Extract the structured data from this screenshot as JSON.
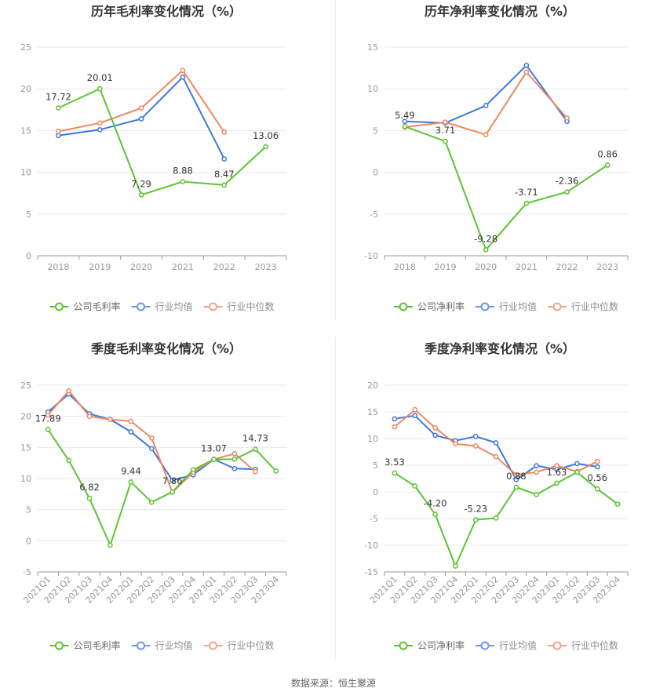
{
  "source": "数据来源：恒生聚源",
  "colors": {
    "company": "#5cc433",
    "avg": "#3d78dd",
    "median": "#f08760"
  },
  "chart_data": [
    {
      "type": "line",
      "title": "历年毛利率变化情况（%）",
      "categories": [
        "2018",
        "2019",
        "2020",
        "2021",
        "2022",
        "2023"
      ],
      "ylim": [
        0,
        25
      ],
      "yticks": [
        0,
        5,
        10,
        15,
        20,
        25
      ],
      "grid": true,
      "legend": "bottom",
      "series": [
        {
          "name": "公司毛利率",
          "values": [
            17.72,
            20.01,
            7.29,
            8.88,
            8.47,
            13.06
          ],
          "labels": [
            "17.72",
            "20.01",
            "7.29",
            "8.88",
            "8.47",
            "13.06"
          ]
        },
        {
          "name": "行业均值",
          "values": [
            14.4,
            15.1,
            16.4,
            21.4,
            11.6,
            null
          ]
        },
        {
          "name": "行业中位数",
          "values": [
            14.9,
            15.9,
            17.7,
            22.2,
            14.8,
            null
          ]
        }
      ]
    },
    {
      "type": "line",
      "title": "历年净利率变化情况（%）",
      "categories": [
        "2018",
        "2019",
        "2020",
        "2021",
        "2022",
        "2023"
      ],
      "ylim": [
        -10,
        15
      ],
      "yticks": [
        -10,
        -5,
        0,
        5,
        10,
        15
      ],
      "grid": true,
      "legend": "bottom",
      "series": [
        {
          "name": "公司净利率",
          "values": [
            5.49,
            3.71,
            -9.28,
            -3.71,
            -2.36,
            0.86
          ],
          "labels": [
            "5.49",
            "3.71",
            "-9.28",
            "-3.71",
            "-2.36",
            "0.86"
          ]
        },
        {
          "name": "行业均值",
          "values": [
            6.1,
            5.9,
            8.0,
            12.8,
            6.1,
            null
          ]
        },
        {
          "name": "行业中位数",
          "values": [
            5.4,
            6.0,
            4.5,
            12.0,
            6.5,
            null
          ]
        }
      ]
    },
    {
      "type": "line",
      "title": "季度毛利率变化情况（%）",
      "categories": [
        "2021Q1",
        "2021Q2",
        "2021Q3",
        "2021Q4",
        "2022Q1",
        "2022Q2",
        "2022Q3",
        "2022Q4",
        "2023Q1",
        "2023Q2",
        "2023Q3",
        "2023Q4"
      ],
      "ylim": [
        -5,
        25
      ],
      "yticks": [
        -5,
        0,
        5,
        10,
        15,
        20,
        25
      ],
      "grid": true,
      "legend": "bottom",
      "series": [
        {
          "name": "公司毛利率",
          "values": [
            17.89,
            12.9,
            6.82,
            -0.7,
            9.44,
            6.2,
            7.86,
            11.4,
            13.07,
            13.1,
            14.73,
            11.2
          ],
          "labels": [
            "17.89",
            "",
            "6.82",
            "",
            "9.44",
            "",
            "7.86",
            "",
            "13.07",
            "",
            "14.73",
            ""
          ]
        },
        {
          "name": "行业均值",
          "values": [
            20.7,
            23.6,
            20.4,
            19.5,
            17.5,
            14.8,
            9.7,
            10.6,
            13.1,
            11.6,
            11.5,
            null
          ]
        },
        {
          "name": "行业中位数",
          "values": [
            20.2,
            24.1,
            20.0,
            19.5,
            19.2,
            16.5,
            7.8,
            11.0,
            13.1,
            14.0,
            11.1,
            null
          ]
        }
      ]
    },
    {
      "type": "line",
      "title": "季度净利率变化情况（%）",
      "categories": [
        "2021Q1",
        "2021Q2",
        "2021Q3",
        "2021Q4",
        "2022Q1",
        "2022Q2",
        "2022Q3",
        "2022Q4",
        "2023Q1",
        "2023Q2",
        "2023Q3",
        "2023Q4"
      ],
      "ylim": [
        -15,
        20
      ],
      "yticks": [
        -15,
        -10,
        -5,
        0,
        5,
        10,
        15,
        20
      ],
      "grid": true,
      "legend": "bottom",
      "series": [
        {
          "name": "公司净利率",
          "values": [
            3.53,
            1.1,
            -4.2,
            -13.9,
            -5.23,
            -4.9,
            0.88,
            -0.5,
            1.63,
            3.7,
            0.56,
            -2.3
          ],
          "labels": [
            "3.53",
            "",
            "-4.20",
            "",
            "-5.23",
            "",
            "0.88",
            "",
            "1.63",
            "",
            "0.56",
            ""
          ]
        },
        {
          "name": "行业均值",
          "values": [
            13.7,
            14.3,
            10.6,
            9.6,
            10.4,
            9.2,
            2.3,
            4.9,
            4.2,
            5.3,
            4.7,
            null
          ]
        },
        {
          "name": "行业中位数",
          "values": [
            12.2,
            15.4,
            12.0,
            9.0,
            8.6,
            6.6,
            3.2,
            3.7,
            4.9,
            3.8,
            5.7,
            null
          ]
        }
      ]
    }
  ]
}
